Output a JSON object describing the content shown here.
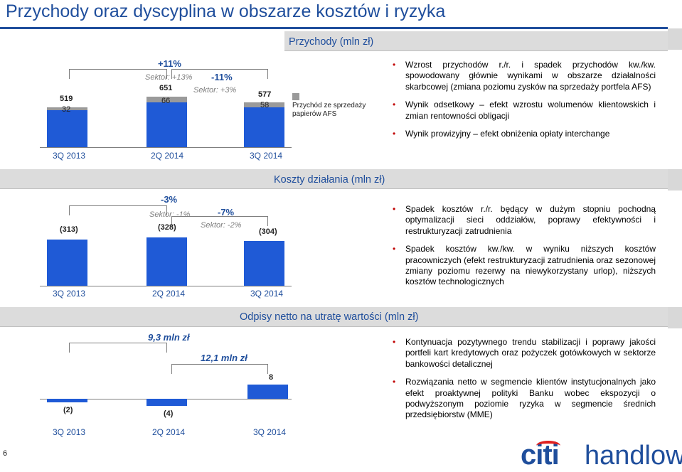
{
  "title": "Przychody oraz dyscyplina w obszarze kosztów i ryzyka",
  "page_number": "6",
  "brand": {
    "citi": "citi",
    "handlowy": "handlowy",
    "primary_color": "#1f4e9c",
    "accent_color": "#e02020",
    "bar_color": "#1f5ad6",
    "grey_color": "#9a9a9a"
  },
  "sections": {
    "revenue": {
      "title": "Przychody (mln zł)",
      "periods": [
        "3Q 2013",
        "2Q 2014",
        "3Q 2014"
      ],
      "totals": [
        "519",
        "651",
        "577"
      ],
      "afs": [
        "32",
        "66",
        "58"
      ],
      "change_qoq_yoy": {
        "yoy": "+11%",
        "yoy_sector": "Sektor: +13%",
        "qoq": "-11%",
        "qoq_sector": "Sektor: +3%"
      },
      "legend": "Przychód ze sprzedaży papierów AFS",
      "bullets": [
        "Wzrost przychodów r./r. i spadek przychodów kw./kw. spowodowany głównie wynikami w obszarze działalności skarbcowej (zmiana poziomu zysków na sprzedaży portfela AFS)",
        "Wynik odsetkowy – efekt wzrostu wolumenów klientowskich i zmian rentowności obligacji",
        "Wynik prowizyjny – efekt obniżenia opłaty interchange"
      ]
    },
    "costs": {
      "title": "Koszty działania (mln zł)",
      "periods": [
        "3Q 2013",
        "2Q 2014",
        "3Q 2014"
      ],
      "values": [
        "(313)",
        "(328)",
        "(304)"
      ],
      "change": {
        "yoy": "-3%",
        "yoy_sector": "Sektor: -1%",
        "qoq": "-7%",
        "qoq_sector": "Sektor: -2%"
      },
      "bullets": [
        "Spadek kosztów r./r. będący w dużym stopniu pochodną optymalizacji sieci oddziałów, poprawy efektywności i restrukturyzacji zatrudnienia",
        "Spadek kosztów kw./kw. w wyniku niższych kosztów pracowniczych (efekt restrukturyzacji zatrudnienia oraz sezonowej zmiany poziomu rezerwy na niewykorzystany urlop), niższych kosztów technologicznych"
      ]
    },
    "impairment": {
      "title": "Odpisy netto na utratę wartości (mln zł)",
      "periods": [
        "3Q 2013",
        "2Q 2014",
        "3Q 2014"
      ],
      "values": [
        "(2)",
        "(4)",
        "8"
      ],
      "change": {
        "yoy": "9,3 mln zł",
        "qoq": "12,1 mln zł"
      },
      "bullets": [
        "Kontynuacja pozytywnego trendu stabilizacji i poprawy jakości portfeli kart kredytowych oraz pożyczek gotówkowych w sektorze bankowości detalicznej",
        "Rozwiązania netto w segmencie klientów instytucjonalnych jako efekt proaktywnej polityki Banku wobec ekspozycji o podwyższonym poziomie ryzyka w segmencie średnich przedsiębiorstw (MME)"
      ]
    }
  },
  "chart_data": [
    {
      "type": "bar",
      "title": "Przychody (mln zł)",
      "categories": [
        "3Q 2013",
        "2Q 2014",
        "3Q 2014"
      ],
      "series": [
        {
          "name": "Przychód ze sprzedaży papierów AFS",
          "values": [
            32,
            66,
            58
          ]
        }
      ],
      "totals": [
        519,
        651,
        577
      ]
    },
    {
      "type": "bar",
      "title": "Koszty działania (mln zł)",
      "categories": [
        "3Q 2013",
        "2Q 2014",
        "3Q 2014"
      ],
      "values": [
        -313,
        -328,
        -304
      ]
    },
    {
      "type": "bar",
      "title": "Odpisy netto na utratę wartości (mln zł)",
      "categories": [
        "3Q 2013",
        "2Q 2014",
        "3Q 2014"
      ],
      "values": [
        -2,
        -4,
        8
      ]
    }
  ]
}
